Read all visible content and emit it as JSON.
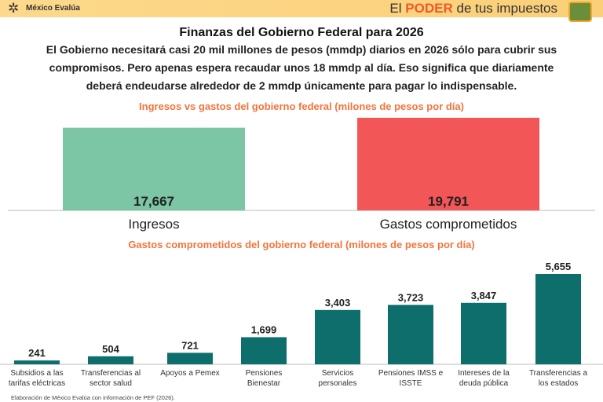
{
  "header": {
    "org": "México Evalúa",
    "brand_prefix": "El",
    "brand_strong": "PODER",
    "brand_suffix": "de tus impuestos"
  },
  "title": "Finanzas del Gobierno Federal para 2026",
  "paragraph": [
    "El Gobierno necesitará casi 20 mil millones de pesos (mmdp) diarios en 2026 sólo para cubrir sus",
    "compromisos. Pero apenas espera recaudar unos 18 mmdp al día. Eso significa que diariamente",
    "deberá endeudarse alrededor de 2 mmdp únicamente para pagar lo indispensable."
  ],
  "footnote": "Elaboración de México Evalúa con información de PEF (2026).",
  "chart_data": [
    {
      "type": "bar",
      "title": "Ingresos vs gastos del gobierno federal (milones de pesos por día)",
      "categories": [
        "Ingresos",
        "Gastos comprometidos"
      ],
      "values": [
        17667,
        19791
      ],
      "labels": [
        "17,667",
        "19,791"
      ],
      "colors": [
        "#7cc5a5",
        "#f25656"
      ],
      "ylim": [
        0,
        19791
      ]
    },
    {
      "type": "bar",
      "title": "Gastos comprometidos del gobierno federal (milones de pesos por día)",
      "categories": [
        [
          "Subsidios a las",
          "tarifas eléctricas"
        ],
        [
          "Transferencias al",
          "sector salud"
        ],
        [
          "Apoyos a Pemex",
          ""
        ],
        [
          "Pensiones",
          "Bienestar"
        ],
        [
          "Servicios",
          "personales"
        ],
        [
          "Pensiones IMSS e",
          "ISSTE"
        ],
        [
          "Intereses de la",
          "deuda pública"
        ],
        [
          "Transferencias a",
          "los estados"
        ]
      ],
      "values": [
        241,
        504,
        721,
        1699,
        3403,
        3723,
        3847,
        5655
      ],
      "labels": [
        "241",
        "504",
        "721",
        "1,699",
        "3,403",
        "3,723",
        "3,847",
        "5,655"
      ],
      "color": "#0d6e6b",
      "ylim": [
        0,
        5655
      ]
    }
  ]
}
